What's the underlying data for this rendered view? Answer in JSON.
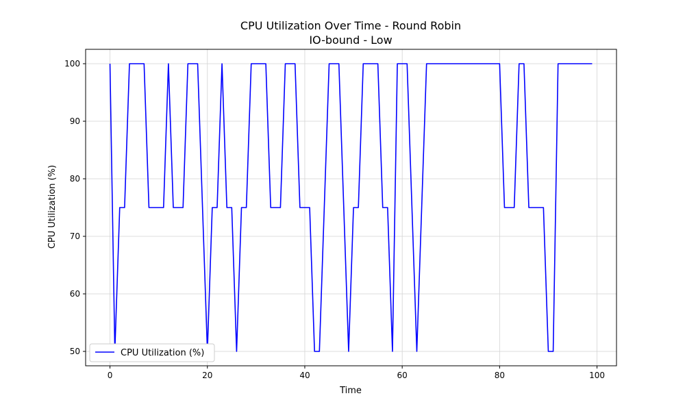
{
  "chart_data": {
    "type": "line",
    "title": "CPU Utilization Over Time - Round Robin",
    "subtitle": "IO-bound - Low",
    "xlabel": "Time",
    "ylabel": "CPU Utilization (%)",
    "xlim": [
      -5,
      104
    ],
    "ylim": [
      47.5,
      102.5
    ],
    "xticks": [
      0,
      20,
      40,
      60,
      80,
      100
    ],
    "yticks": [
      50,
      60,
      70,
      80,
      90,
      100
    ],
    "grid": true,
    "legend_position": "lower-left",
    "colors": {
      "line": "#0000ff",
      "grid": "#d3d3d3",
      "axis": "#000000"
    },
    "series": [
      {
        "name": "CPU Utilization (%)",
        "x": [
          0,
          1,
          2,
          3,
          4,
          5,
          6,
          7,
          8,
          9,
          10,
          11,
          12,
          13,
          14,
          15,
          16,
          17,
          18,
          19,
          20,
          21,
          22,
          23,
          24,
          25,
          26,
          27,
          28,
          29,
          30,
          31,
          32,
          33,
          34,
          35,
          36,
          37,
          38,
          39,
          40,
          41,
          42,
          43,
          44,
          45,
          46,
          47,
          48,
          49,
          50,
          51,
          52,
          53,
          54,
          55,
          56,
          57,
          58,
          59,
          60,
          61,
          62,
          63,
          64,
          65,
          66,
          67,
          68,
          69,
          70,
          71,
          72,
          73,
          74,
          75,
          76,
          77,
          78,
          79,
          80,
          81,
          82,
          83,
          84,
          85,
          86,
          87,
          88,
          89,
          90,
          91,
          92,
          93,
          94,
          95,
          96,
          97,
          98,
          99
        ],
        "y": [
          100,
          50,
          75,
          75,
          100,
          100,
          100,
          100,
          75,
          75,
          75,
          75,
          100,
          75,
          75,
          75,
          100,
          100,
          100,
          75,
          50,
          75,
          75,
          100,
          75,
          75,
          50,
          75,
          75,
          100,
          100,
          100,
          100,
          75,
          75,
          75,
          100,
          100,
          100,
          75,
          75,
          75,
          50,
          50,
          75,
          100,
          100,
          100,
          75,
          50,
          75,
          75,
          100,
          100,
          100,
          100,
          75,
          75,
          50,
          100,
          100,
          100,
          75,
          50,
          75,
          100,
          100,
          100,
          100,
          100,
          100,
          100,
          100,
          100,
          100,
          100,
          100,
          100,
          100,
          100,
          100,
          75,
          75,
          75,
          100,
          100,
          75,
          75,
          75,
          75,
          50,
          50,
          100,
          100,
          100,
          100,
          100,
          100,
          100,
          100
        ]
      }
    ]
  }
}
